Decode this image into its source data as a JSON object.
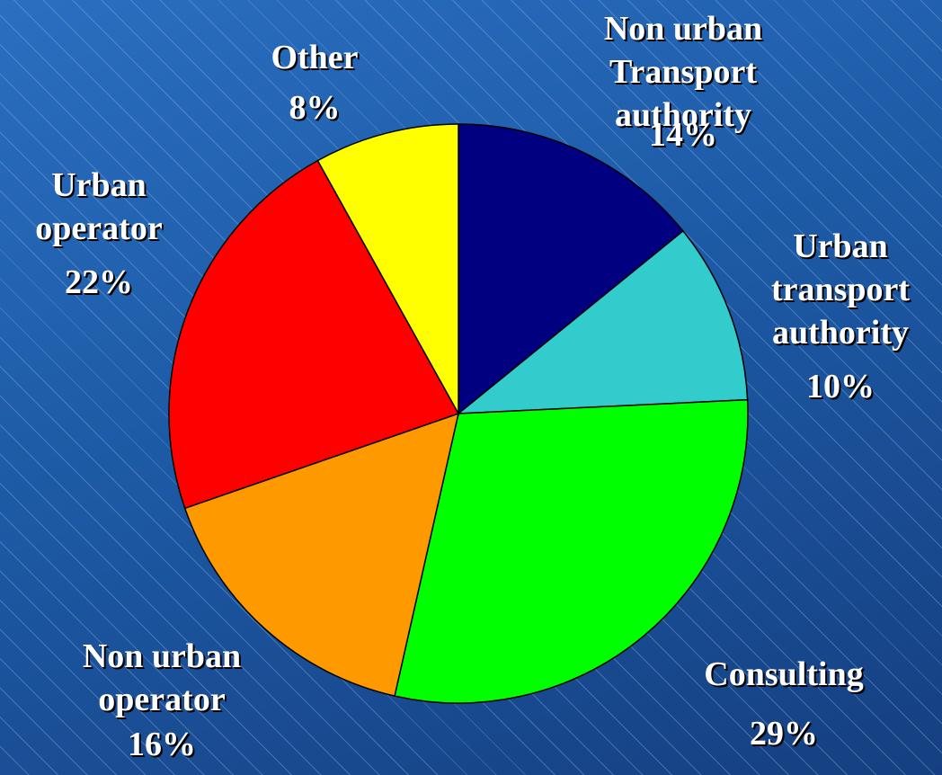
{
  "chart_data": {
    "type": "pie",
    "categories": [
      "Non urban\nTransport authority",
      "Urban\ntransport\nauthority",
      "Consulting",
      "Non urban\noperator",
      "Urban\noperator",
      "Other"
    ],
    "values": [
      14,
      10,
      29,
      16,
      22,
      8
    ],
    "value_labels": [
      "14%",
      "10%",
      "29%",
      "16%",
      "22%",
      "8%"
    ],
    "colors": [
      "#000080",
      "#33cccc",
      "#00ff00",
      "#ff9900",
      "#ff0000",
      "#ffff00"
    ]
  }
}
